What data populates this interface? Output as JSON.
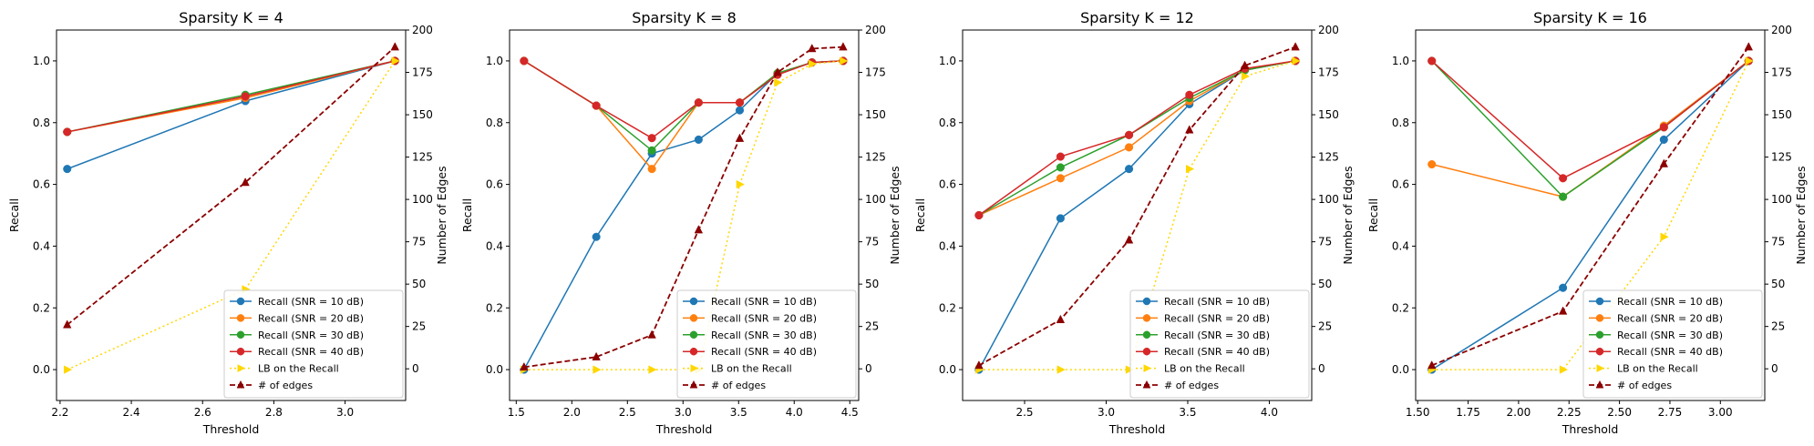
{
  "colors": {
    "snr10": "#1f77b4",
    "snr20": "#ff7f0e",
    "snr30": "#2ca02c",
    "snr40": "#d62728",
    "lb": "#ffd700",
    "edges": "#8b0000"
  },
  "chart_data": [
    {
      "type": "line",
      "title": "Sparsity K = 4",
      "xlabel": "Threshold",
      "ylabel": "Recall",
      "y2label": "Number of Edges",
      "xlim": [
        2.19,
        3.17
      ],
      "ylim": [
        -0.1,
        1.1
      ],
      "y2lim": [
        -18.7,
        200
      ],
      "xticks": [
        "2.2",
        "2.4",
        "2.6",
        "2.8",
        "3.0"
      ],
      "yticks": [
        "0.0",
        "0.2",
        "0.4",
        "0.6",
        "0.8",
        "1.0"
      ],
      "y2ticks": [
        "0",
        "25",
        "50",
        "75",
        "100",
        "125",
        "150",
        "175",
        "200"
      ],
      "legend_position": "lower-right",
      "x": [
        2.22,
        2.72,
        3.14
      ],
      "series": [
        {
          "name": "Recall (SNR = 10 dB)",
          "axis": "left",
          "values": [
            0.65,
            0.87,
            1.0
          ]
        },
        {
          "name": "Recall (SNR = 20 dB)",
          "axis": "left",
          "values": [
            0.77,
            0.88,
            1.0
          ]
        },
        {
          "name": "Recall (SNR = 30 dB)",
          "axis": "left",
          "values": [
            0.77,
            0.89,
            1.0
          ]
        },
        {
          "name": "Recall (SNR = 40 dB)",
          "axis": "left",
          "values": [
            0.77,
            0.885,
            1.0
          ]
        },
        {
          "name": "LB on the Recall",
          "axis": "left",
          "values": [
            0.0,
            0.26,
            1.0
          ]
        },
        {
          "name": "# of edges",
          "axis": "right",
          "values": [
            26,
            110,
            190
          ]
        }
      ]
    },
    {
      "type": "line",
      "title": "Sparsity K = 8",
      "xlabel": "Threshold",
      "ylabel": "Recall",
      "y2label": "Number of Edges",
      "xlim": [
        1.44,
        4.58
      ],
      "ylim": [
        -0.1,
        1.1
      ],
      "y2lim": [
        -18.7,
        200
      ],
      "xticks": [
        "1.5",
        "2.0",
        "2.5",
        "3.0",
        "3.5",
        "4.0",
        "4.5"
      ],
      "yticks": [
        "0.0",
        "0.2",
        "0.4",
        "0.6",
        "0.8",
        "1.0"
      ],
      "y2ticks": [
        "0",
        "25",
        "50",
        "75",
        "100",
        "125",
        "150",
        "175",
        "200"
      ],
      "legend_position": "lower-right",
      "x": [
        1.57,
        2.22,
        2.72,
        3.14,
        3.51,
        3.85,
        4.16,
        4.44
      ],
      "series": [
        {
          "name": "Recall (SNR = 10 dB)",
          "axis": "left",
          "values": [
            0.0,
            0.43,
            0.7,
            0.745,
            0.84,
            0.96,
            0.995,
            1.0
          ]
        },
        {
          "name": "Recall (SNR = 20 dB)",
          "axis": "left",
          "values": [
            1.0,
            0.855,
            0.65,
            0.865,
            0.865,
            0.96,
            0.995,
            1.0
          ]
        },
        {
          "name": "Recall (SNR = 30 dB)",
          "axis": "left",
          "values": [
            1.0,
            0.855,
            0.71,
            0.865,
            0.865,
            0.96,
            0.995,
            1.0
          ]
        },
        {
          "name": "Recall (SNR = 40 dB)",
          "axis": "left",
          "values": [
            1.0,
            0.855,
            0.75,
            0.865,
            0.865,
            0.955,
            0.995,
            1.0
          ]
        },
        {
          "name": "LB on the Recall",
          "axis": "left",
          "values": [
            0.0,
            0.0,
            0.0,
            0.0,
            0.6,
            0.93,
            0.99,
            1.0
          ]
        },
        {
          "name": "# of edges",
          "axis": "right",
          "values": [
            1,
            7,
            20,
            82,
            136,
            175,
            189,
            190
          ]
        }
      ]
    },
    {
      "type": "line",
      "title": "Sparsity K = 12",
      "xlabel": "Threshold",
      "ylabel": "Recall",
      "y2label": "Number of Edges",
      "xlim": [
        2.12,
        4.26
      ],
      "ylim": [
        -0.1,
        1.1
      ],
      "y2lim": [
        -18.7,
        200
      ],
      "xticks": [
        "2.5",
        "3.0",
        "3.5",
        "4.0"
      ],
      "yticks": [
        "0.0",
        "0.2",
        "0.4",
        "0.6",
        "0.8",
        "1.0"
      ],
      "y2ticks": [
        "0",
        "25",
        "50",
        "75",
        "100",
        "125",
        "150",
        "175",
        "200"
      ],
      "legend_position": "lower-right",
      "x": [
        2.22,
        2.72,
        3.14,
        3.51,
        3.85,
        4.16
      ],
      "series": [
        {
          "name": "Recall (SNR = 10 dB)",
          "axis": "left",
          "values": [
            0.0,
            0.49,
            0.65,
            0.86,
            0.97,
            1.0
          ]
        },
        {
          "name": "Recall (SNR = 20 dB)",
          "axis": "left",
          "values": [
            0.5,
            0.62,
            0.72,
            0.87,
            0.97,
            1.0
          ]
        },
        {
          "name": "Recall (SNR = 30 dB)",
          "axis": "left",
          "values": [
            0.5,
            0.655,
            0.76,
            0.88,
            0.97,
            1.0
          ]
        },
        {
          "name": "Recall (SNR = 40 dB)",
          "axis": "left",
          "values": [
            0.5,
            0.69,
            0.76,
            0.89,
            0.975,
            1.0
          ]
        },
        {
          "name": "LB on the Recall",
          "axis": "left",
          "values": [
            0.0,
            0.0,
            0.0,
            0.65,
            0.95,
            1.0
          ]
        },
        {
          "name": "# of edges",
          "axis": "right",
          "values": [
            2,
            29,
            76,
            141,
            179,
            190
          ]
        }
      ]
    },
    {
      "type": "line",
      "title": "Sparsity K = 16",
      "xlabel": "Threshold",
      "ylabel": "Recall",
      "y2label": "Number of Edges",
      "xlim": [
        1.49,
        3.22
      ],
      "ylim": [
        -0.1,
        1.1
      ],
      "y2lim": [
        -18.7,
        200
      ],
      "xticks": [
        "1.50",
        "1.75",
        "2.00",
        "2.25",
        "2.50",
        "2.75",
        "3.00"
      ],
      "yticks": [
        "0.0",
        "0.2",
        "0.4",
        "0.6",
        "0.8",
        "1.0"
      ],
      "y2ticks": [
        "0",
        "25",
        "50",
        "75",
        "100",
        "125",
        "150",
        "175",
        "200"
      ],
      "legend_position": "lower-right",
      "x": [
        1.57,
        2.22,
        2.72,
        3.14
      ],
      "series": [
        {
          "name": "Recall (SNR = 10 dB)",
          "axis": "left",
          "values": [
            0.0,
            0.265,
            0.745,
            1.0
          ]
        },
        {
          "name": "Recall (SNR = 20 dB)",
          "axis": "left",
          "values": [
            0.665,
            0.56,
            0.79,
            1.0
          ]
        },
        {
          "name": "Recall (SNR = 30 dB)",
          "axis": "left",
          "values": [
            1.0,
            0.56,
            0.785,
            1.0
          ]
        },
        {
          "name": "Recall (SNR = 40 dB)",
          "axis": "left",
          "values": [
            1.0,
            0.62,
            0.785,
            1.0
          ]
        },
        {
          "name": "LB on the Recall",
          "axis": "left",
          "values": [
            0.0,
            0.0,
            0.43,
            1.0
          ]
        },
        {
          "name": "# of edges",
          "axis": "right",
          "values": [
            2,
            34,
            121,
            190
          ]
        }
      ]
    }
  ]
}
